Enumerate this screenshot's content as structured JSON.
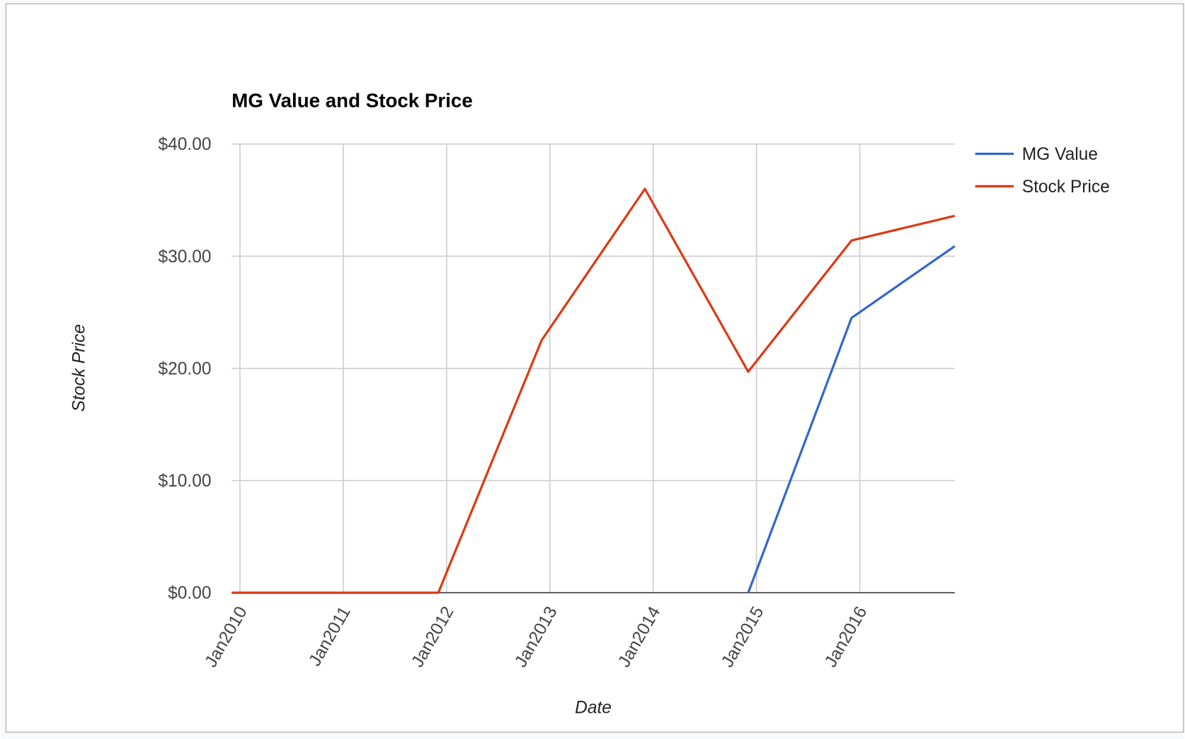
{
  "chart_data": {
    "type": "line",
    "title": "MG Value and Stock Price",
    "x_label": "Date",
    "y_label": "Stock Price",
    "x": [
      2009.92,
      2010.92,
      2011.92,
      2012.92,
      2013.92,
      2014.92,
      2015.92,
      2016.92
    ],
    "series": [
      {
        "name": "MG Value",
        "color": "#3366cc",
        "values": [
          null,
          null,
          null,
          null,
          null,
          0,
          24.5,
          30.9
        ]
      },
      {
        "name": "Stock Price",
        "color": "#dc3912",
        "values": [
          0,
          0,
          0,
          22.5,
          36,
          19.7,
          31.4,
          33.6
        ]
      }
    ],
    "xlim": [
      2009.92,
      2016.92
    ],
    "xticks": [
      {
        "value": 2010,
        "label": "Jan2010"
      },
      {
        "value": 2011,
        "label": "Jan2011"
      },
      {
        "value": 2012,
        "label": "Jan2012"
      },
      {
        "value": 2013,
        "label": "Jan2013"
      },
      {
        "value": 2014,
        "label": "Jan2014"
      },
      {
        "value": 2015,
        "label": "Jan2015"
      },
      {
        "value": 2016,
        "label": "Jan2016"
      }
    ],
    "ylim": [
      0,
      40
    ],
    "yticks": [
      {
        "value": 0,
        "label": "$0.00"
      },
      {
        "value": 10,
        "label": "$10.00"
      },
      {
        "value": 20,
        "label": "$20.00"
      },
      {
        "value": 30,
        "label": "$30.00"
      },
      {
        "value": 40,
        "label": "$40.00"
      }
    ],
    "grid": true,
    "legend": "right"
  }
}
